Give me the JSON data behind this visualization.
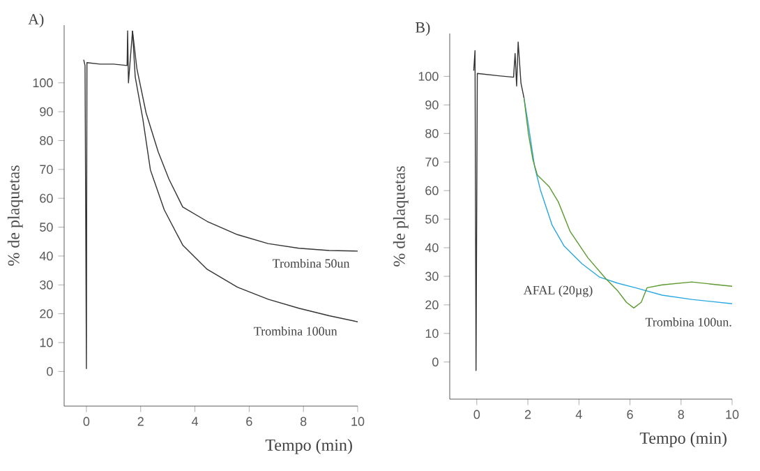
{
  "chart_data": [
    {
      "type": "line",
      "title": "A)",
      "xlabel": "Tempo (min)",
      "ylabel": "% de plaquetas",
      "xlim": [
        -0.82,
        10
      ],
      "ylim": [
        -12,
        120
      ],
      "xticks": [
        0,
        2,
        4,
        6,
        8,
        10
      ],
      "yticks": [
        0,
        10,
        20,
        30,
        40,
        50,
        60,
        70,
        80,
        90,
        100
      ],
      "series": [
        {
          "color": "#333333",
          "x": [
            -0.1,
            -0.05,
            0,
            0.02,
            0.5,
            1.0,
            1.5,
            1.52,
            1.55,
            1.6,
            1.7
          ],
          "values": [
            108,
            106,
            1,
            107,
            106.5,
            106.5,
            106,
            118,
            100,
            106,
            118
          ]
        },
        {
          "color": "#333333",
          "x": [
            1.7,
            1.86,
            2.2,
            2.65,
            3.04,
            3.55,
            4.45,
            5.57,
            6.7,
            7.83,
            8.95,
            10
          ],
          "values": [
            118,
            105,
            89.6,
            76,
            66.7,
            57,
            52,
            47.4,
            44.3,
            42.7,
            41.9,
            41.7
          ]
        },
        {
          "color": "#333333",
          "x": [
            1.7,
            1.8,
            2.08,
            2.36,
            2.87,
            3.55,
            4.45,
            5.57,
            6.7,
            7.83,
            8.95,
            10
          ],
          "values": [
            118,
            102,
            87.5,
            69.8,
            56,
            43.8,
            35.4,
            29.2,
            25,
            21.9,
            19.3,
            17.2
          ]
        }
      ],
      "annotations": [
        "Trombina 50un",
        "Trombina 100un"
      ]
    },
    {
      "type": "line",
      "title": "B)",
      "xlabel": "Tempo (min)",
      "ylabel": "% de plaquetas",
      "xlim": [
        -1.06,
        10
      ],
      "ylim": [
        -13,
        115
      ],
      "xticks": [
        0,
        2,
        4,
        6,
        8,
        10
      ],
      "yticks": [
        0,
        10,
        20,
        30,
        40,
        50,
        60,
        70,
        80,
        90,
        100
      ],
      "series": [
        {
          "color": "#333333",
          "x": [
            -0.12,
            -0.07,
            -0.03,
            0.02,
            0.86,
            1.44,
            1.5,
            1.56,
            1.62,
            1.73,
            1.85
          ],
          "values": [
            102,
            109,
            -3,
            101,
            100.2,
            99.7,
            108,
            96.6,
            112,
            97.6,
            92.4
          ]
        },
        {
          "color": "#29a8e0",
          "x": [
            1.85,
            2.02,
            2.26,
            2.49,
            2.95,
            3.42,
            4.12,
            4.81,
            5.51,
            6.21,
            7.26,
            8.42,
            10
          ],
          "values": [
            92.4,
            83,
            68.6,
            60.3,
            47.9,
            40.6,
            34.4,
            29.7,
            27.6,
            26,
            23.4,
            21.9,
            20.4
          ]
        },
        {
          "color": "#5a9a2e",
          "x": [
            1.85,
            2.02,
            2.2,
            2.37,
            2.84,
            3.19,
            3.65,
            4.35,
            5.05,
            5.51,
            5.86,
            6.15,
            6.44,
            6.67,
            7.26,
            8.42,
            10
          ],
          "values": [
            92.4,
            80,
            70.7,
            65.5,
            61.3,
            56.1,
            45.8,
            36.5,
            29.2,
            25,
            20.9,
            18.9,
            20.9,
            26,
            27,
            28,
            26.5
          ]
        }
      ],
      "annotations": [
        "AFAL (20µg)",
        "Trombina 100un."
      ]
    }
  ]
}
